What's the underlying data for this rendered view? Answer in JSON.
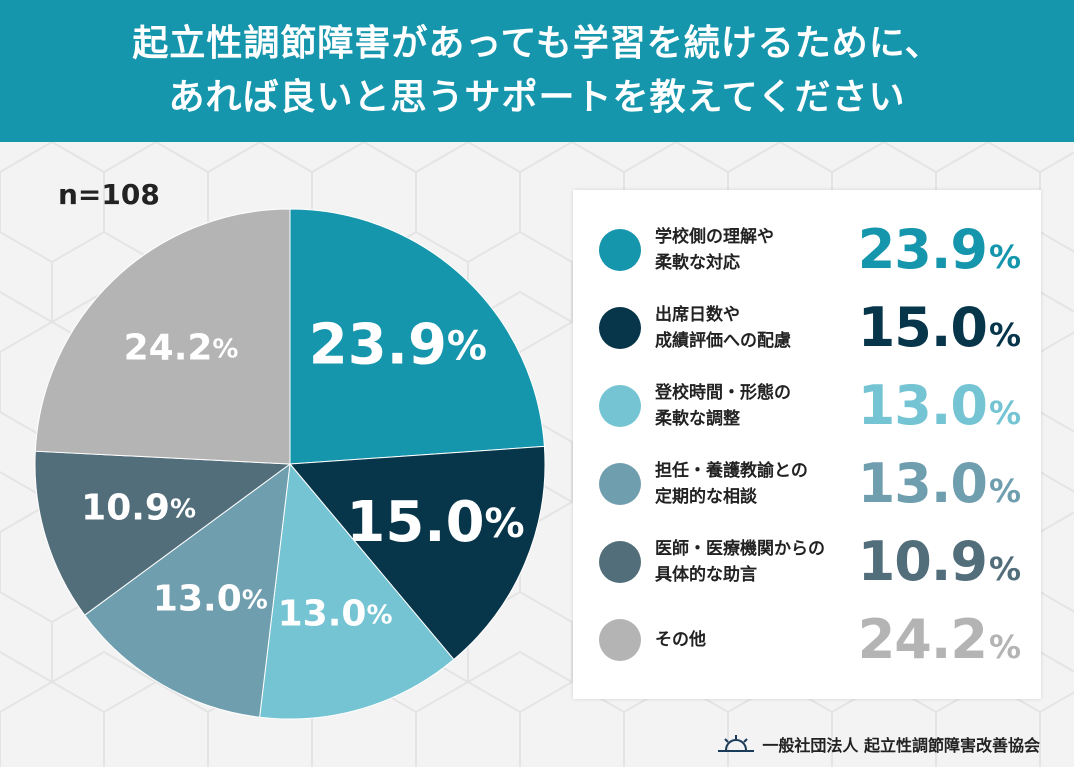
{
  "header": {
    "title_line1": "起立性調節障害があっても学習を続けるために、",
    "title_line2": "あれば良いと思うサポートを教えてください"
  },
  "sample_size": "n=108",
  "footer": {
    "organization": "一般社団法人 起立性調節障害改善協会",
    "logo_icon": "sunrise-icon"
  },
  "chart_data": {
    "type": "pie",
    "title": "起立性調節障害があっても学習を続けるために、あれば良いと思うサポートを教えてください",
    "legend_position": "right",
    "slices": [
      {
        "label_lines": [
          "学校側の理解や",
          "柔軟な対応"
        ],
        "value": 23.9,
        "display": "23.9",
        "color": "#1596ad"
      },
      {
        "label_lines": [
          "出席日数や",
          "成績評価への配慮"
        ],
        "value": 15.0,
        "display": "15.0",
        "color": "#07354a"
      },
      {
        "label_lines": [
          "登校時間・形態の",
          "柔軟な調整"
        ],
        "value": 13.0,
        "display": "13.0",
        "color": "#74c4d3"
      },
      {
        "label_lines": [
          "担任・養護教諭との",
          "定期的な相談"
        ],
        "value": 13.0,
        "display": "13.0",
        "color": "#6f9eaf"
      },
      {
        "label_lines": [
          "医師・医療機関からの",
          "具体的な助言"
        ],
        "value": 10.9,
        "display": "10.9",
        "color": "#536e7b"
      },
      {
        "label_lines": [
          "その他"
        ],
        "value": 24.2,
        "display": "24.2",
        "color": "#b4b4b4"
      }
    ],
    "percent_sign": "%"
  }
}
